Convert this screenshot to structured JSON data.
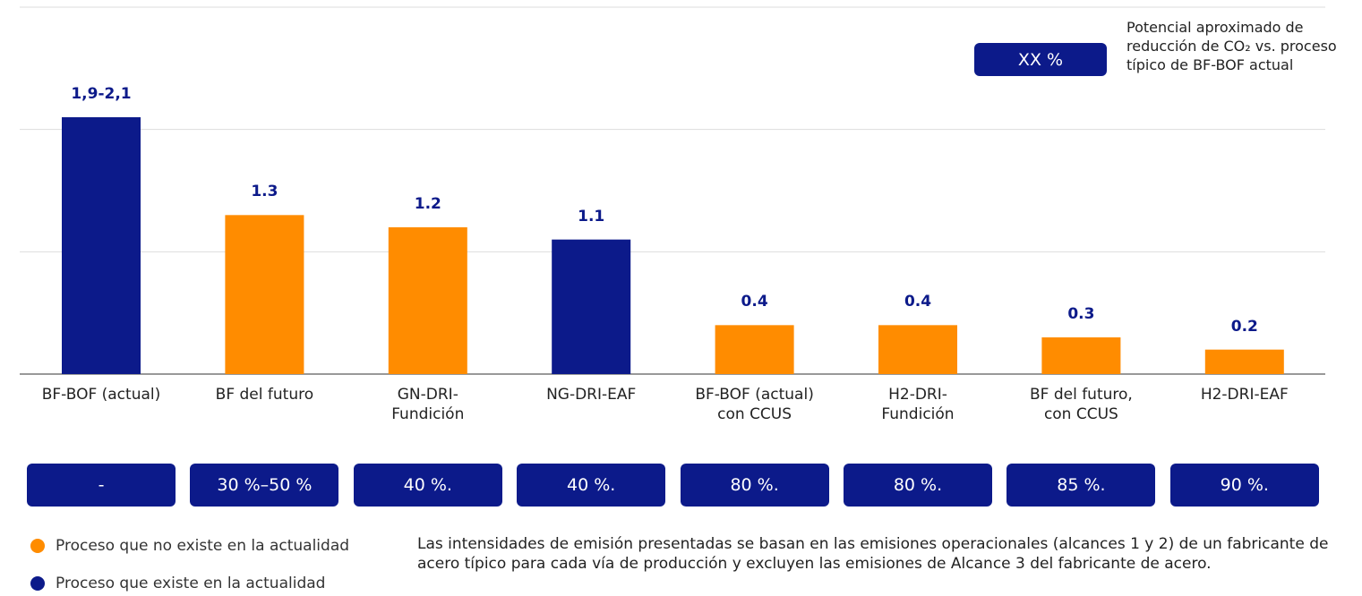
{
  "chart_data": {
    "type": "bar",
    "categories": [
      "BF-BOF (actual)",
      "BF del futuro",
      "GN-DRI-\nFundición",
      "NG-DRI-EAF",
      "BF-BOF (actual)\ncon CCUS",
      "H2-DRI-\nFundición",
      "BF del futuro,\ncon CCUS",
      "H2-DRI-EAF"
    ],
    "values": [
      2.1,
      1.3,
      1.2,
      1.1,
      0.4,
      0.4,
      0.3,
      0.2
    ],
    "value_labels": [
      "1,9-2,1",
      "1.3",
      "1.2",
      "1.1",
      "0.4",
      "0.4",
      "0.3",
      "0.2"
    ],
    "colors": [
      "#0c1a8a",
      "#ff8c00",
      "#ff8c00",
      "#0c1a8a",
      "#ff8c00",
      "#ff8c00",
      "#ff8c00",
      "#ff8c00"
    ],
    "reductions": [
      "-",
      "30 %–50 %",
      "40 %.",
      "40 %.",
      "80 %.",
      "80 %.",
      "85 %.",
      "90 %."
    ],
    "reduction_key": {
      "label": "XX %",
      "text": "Potencial aproximado de reducción de CO₂ vs. proceso típico de BF-BOF actual"
    },
    "legend": [
      {
        "name": "Proceso que no existe en la actualidad",
        "color": "#ff8c00"
      },
      {
        "name": "Proceso que existe en la actualidad",
        "color": "#0c1a8a"
      }
    ],
    "footnote": "Las intensidades de emisión presentadas se basan en las emisiones operacionales (alcances 1 y 2) de un fabricante de acero típico para cada vía de producción y excluyen las emisiones de Alcance 3 del fabricante de acero.",
    "ylim": [
      0,
      3
    ],
    "yticks": [
      0,
      1,
      2,
      3
    ],
    "grid": true
  }
}
